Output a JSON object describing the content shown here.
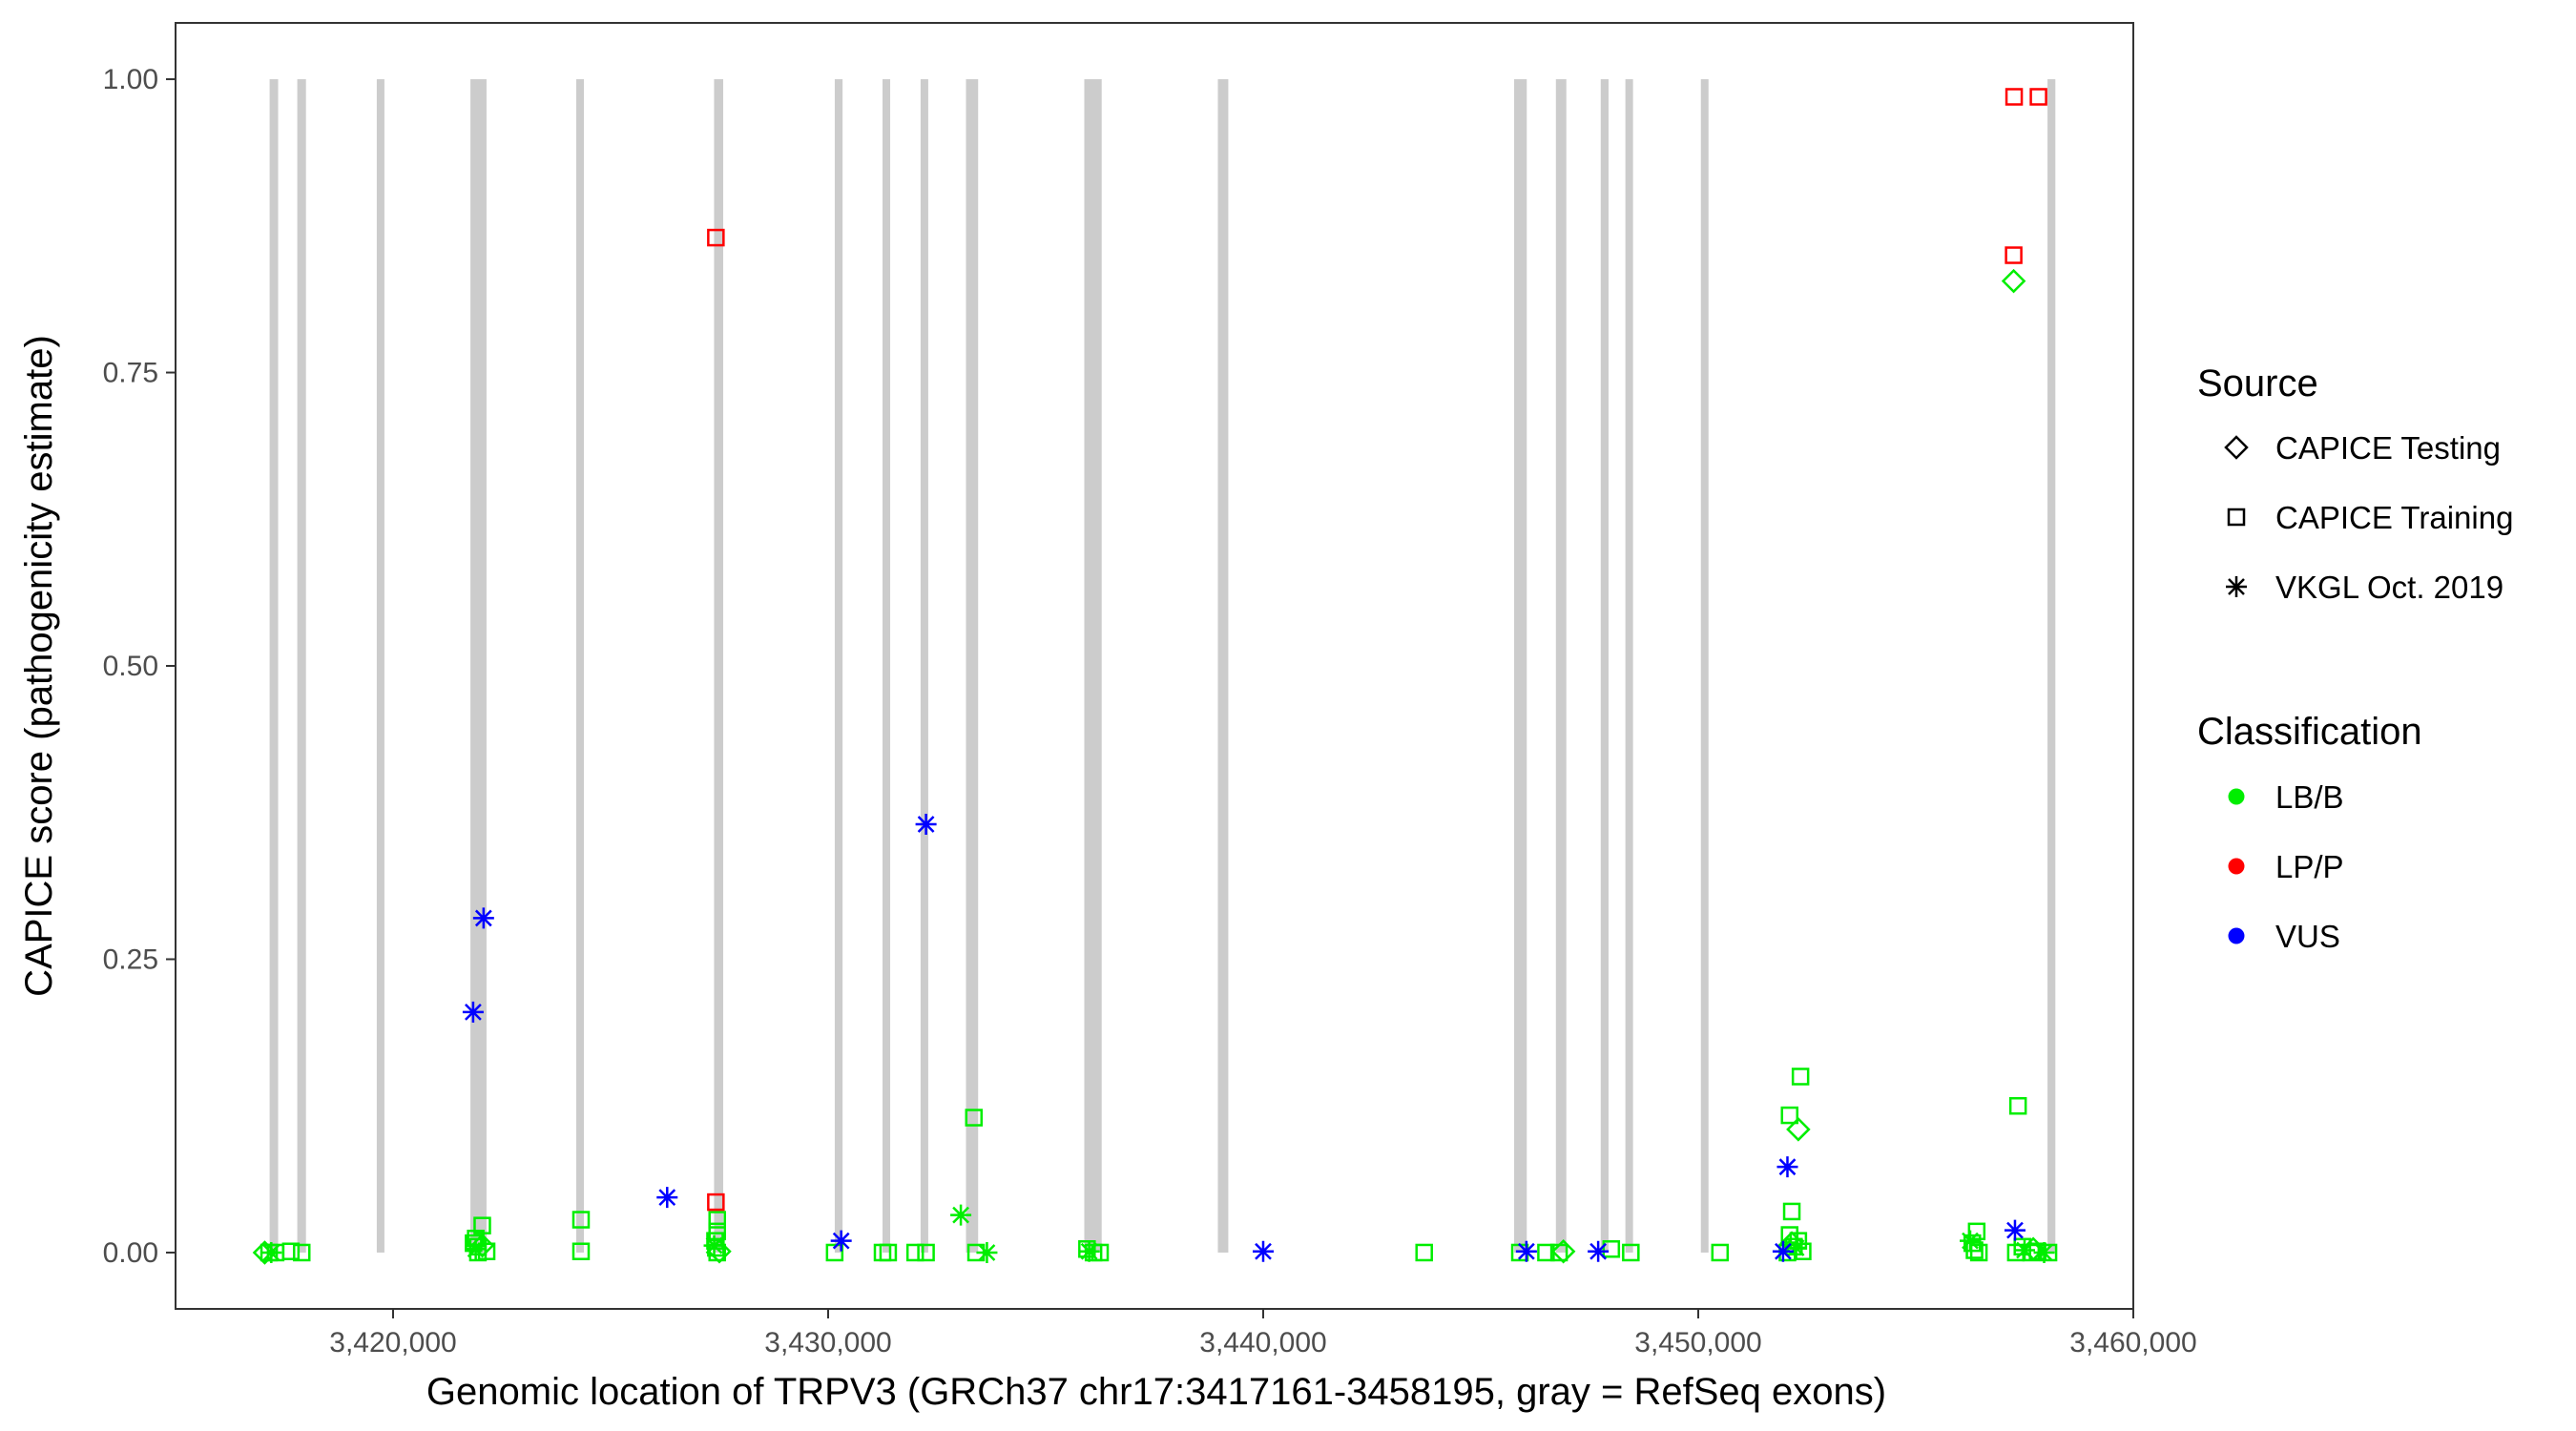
{
  "chart_data": {
    "type": "scatter",
    "title": "",
    "xlabel": "Genomic location of TRPV3 (GRCh37 chr17:3417161-3458195, gray = RefSeq exons)",
    "ylabel": "CAPICE score (pathogenicity estimate)",
    "xlim": [
      3415000,
      3460000
    ],
    "ylim": [
      -0.048,
      1.048
    ],
    "x_ticks": [
      3420000,
      3430000,
      3440000,
      3450000,
      3460000
    ],
    "x_tick_labels": [
      "3,420,000",
      "3,430,000",
      "3,440,000",
      "3,450,000",
      "3,460,000"
    ],
    "y_ticks": [
      0,
      0.25,
      0.5,
      0.75,
      1.0
    ],
    "y_tick_labels": [
      "0.00",
      "0.25",
      "0.50",
      "0.75",
      "1.00"
    ],
    "grid": false,
    "exon_color": "#cccccc",
    "exons": [
      [
        3417162,
        3417358
      ],
      [
        3417798,
        3417998
      ],
      [
        3419628,
        3419798
      ],
      [
        3421778,
        3422148
      ],
      [
        3424232,
        3424365
      ],
      [
        3427378,
        3427588
      ],
      [
        3430152,
        3430332
      ],
      [
        3431258,
        3431418
      ],
      [
        3432128,
        3432298
      ],
      [
        3433168,
        3433448
      ],
      [
        3435888,
        3436288
      ],
      [
        3438958,
        3439198
      ],
      [
        3445768,
        3446058
      ],
      [
        3446728,
        3446968
      ],
      [
        3447758,
        3447938
      ],
      [
        3448328,
        3448498
      ],
      [
        3450078,
        3450218
      ],
      [
        3458028,
        3458208
      ]
    ],
    "legend_position": "right",
    "legends": {
      "source": {
        "title": "Source",
        "entries": [
          {
            "label": "CAPICE Testing",
            "shape": "diamond"
          },
          {
            "label": "CAPICE Training",
            "shape": "square"
          },
          {
            "label": "VKGL Oct. 2019",
            "shape": "asterisk"
          }
        ]
      },
      "classification": {
        "title": "Classification",
        "entries": [
          {
            "label": "LB/B",
            "color": "#00ee00"
          },
          {
            "label": "LP/P",
            "color": "#ff0000"
          },
          {
            "label": "VUS",
            "color": "#0000ff"
          }
        ]
      }
    },
    "series": [
      {
        "classification": "LP/P",
        "color": "#ff0000",
        "points": [
          {
            "x": 3427420,
            "y": 0.865,
            "s": "square"
          },
          {
            "x": 3427420,
            "y": 0.043,
            "s": "square"
          },
          {
            "x": 3457260,
            "y": 0.985,
            "s": "square"
          },
          {
            "x": 3457820,
            "y": 0.985,
            "s": "square"
          },
          {
            "x": 3457250,
            "y": 0.85,
            "s": "square"
          }
        ]
      },
      {
        "classification": "VUS",
        "color": "#0000ff",
        "points": [
          {
            "x": 3421840,
            "y": 0.205,
            "s": "asterisk"
          },
          {
            "x": 3422080,
            "y": 0.285,
            "s": "asterisk"
          },
          {
            "x": 3426300,
            "y": 0.047,
            "s": "asterisk"
          },
          {
            "x": 3430300,
            "y": 0.01,
            "s": "asterisk"
          },
          {
            "x": 3432250,
            "y": 0.365,
            "s": "asterisk"
          },
          {
            "x": 3440000,
            "y": 0.001,
            "s": "asterisk"
          },
          {
            "x": 3446050,
            "y": 0.001,
            "s": "asterisk"
          },
          {
            "x": 3447700,
            "y": 0.001,
            "s": "asterisk"
          },
          {
            "x": 3452050,
            "y": 0.073,
            "s": "asterisk"
          },
          {
            "x": 3451950,
            "y": 0.001,
            "s": "asterisk"
          },
          {
            "x": 3457280,
            "y": 0.019,
            "s": "asterisk"
          }
        ]
      },
      {
        "classification": "LB/B",
        "color": "#00ee00",
        "points": [
          {
            "x": 3417150,
            "y": 0.0,
            "s": "square"
          },
          {
            "x": 3417300,
            "y": 0.0,
            "s": "square"
          },
          {
            "x": 3417650,
            "y": 0.001,
            "s": "square"
          },
          {
            "x": 3417900,
            "y": 0.0,
            "s": "square"
          },
          {
            "x": 3417200,
            "y": 0.0,
            "s": "asterisk"
          },
          {
            "x": 3417050,
            "y": 0.0,
            "s": "diamond"
          },
          {
            "x": 3421950,
            "y": 0.0,
            "s": "square"
          },
          {
            "x": 3421950,
            "y": 0.005,
            "s": "square"
          },
          {
            "x": 3421900,
            "y": 0.012,
            "s": "square"
          },
          {
            "x": 3422050,
            "y": 0.023,
            "s": "square"
          },
          {
            "x": 3422150,
            "y": 0.001,
            "s": "square"
          },
          {
            "x": 3421850,
            "y": 0.008,
            "s": "square"
          },
          {
            "x": 3421900,
            "y": 0.003,
            "s": "asterisk"
          },
          {
            "x": 3422050,
            "y": 0.006,
            "s": "diamond"
          },
          {
            "x": 3424320,
            "y": 0.028,
            "s": "square"
          },
          {
            "x": 3424320,
            "y": 0.001,
            "s": "square"
          },
          {
            "x": 3427450,
            "y": 0.0,
            "s": "square"
          },
          {
            "x": 3427420,
            "y": 0.004,
            "s": "square"
          },
          {
            "x": 3427400,
            "y": 0.01,
            "s": "square"
          },
          {
            "x": 3427450,
            "y": 0.018,
            "s": "square"
          },
          {
            "x": 3427450,
            "y": 0.028,
            "s": "square"
          },
          {
            "x": 3427380,
            "y": 0.006,
            "s": "asterisk"
          },
          {
            "x": 3427500,
            "y": 0.001,
            "s": "diamond"
          },
          {
            "x": 3430150,
            "y": 0.0,
            "s": "square"
          },
          {
            "x": 3431250,
            "y": 0.0,
            "s": "square"
          },
          {
            "x": 3431380,
            "y": 0.0,
            "s": "square"
          },
          {
            "x": 3432000,
            "y": 0.0,
            "s": "square"
          },
          {
            "x": 3432250,
            "y": 0.0,
            "s": "square"
          },
          {
            "x": 3433050,
            "y": 0.032,
            "s": "asterisk"
          },
          {
            "x": 3433350,
            "y": 0.115,
            "s": "square"
          },
          {
            "x": 3433400,
            "y": 0.0,
            "s": "square"
          },
          {
            "x": 3433650,
            "y": 0.0,
            "s": "asterisk"
          },
          {
            "x": 3435950,
            "y": 0.003,
            "s": "square"
          },
          {
            "x": 3436100,
            "y": 0.0,
            "s": "square"
          },
          {
            "x": 3436250,
            "y": 0.0,
            "s": "square"
          },
          {
            "x": 3436000,
            "y": 0.001,
            "s": "asterisk"
          },
          {
            "x": 3443700,
            "y": 0.0,
            "s": "square"
          },
          {
            "x": 3445900,
            "y": 0.0,
            "s": "square"
          },
          {
            "x": 3446500,
            "y": 0.0,
            "s": "square"
          },
          {
            "x": 3446800,
            "y": 0.0,
            "s": "square"
          },
          {
            "x": 3446900,
            "y": 0.001,
            "s": "diamond"
          },
          {
            "x": 3448000,
            "y": 0.003,
            "s": "square"
          },
          {
            "x": 3448450,
            "y": 0.0,
            "s": "square"
          },
          {
            "x": 3450500,
            "y": 0.0,
            "s": "square"
          },
          {
            "x": 3452100,
            "y": 0.117,
            "s": "square"
          },
          {
            "x": 3452350,
            "y": 0.15,
            "s": "square"
          },
          {
            "x": 3452300,
            "y": 0.105,
            "s": "diamond"
          },
          {
            "x": 3452150,
            "y": 0.035,
            "s": "square"
          },
          {
            "x": 3452100,
            "y": 0.015,
            "s": "square"
          },
          {
            "x": 3452300,
            "y": 0.01,
            "s": "square"
          },
          {
            "x": 3452200,
            "y": 0.005,
            "s": "square"
          },
          {
            "x": 3452400,
            "y": 0.001,
            "s": "square"
          },
          {
            "x": 3452050,
            "y": 0.0,
            "s": "square"
          },
          {
            "x": 3452250,
            "y": 0.004,
            "s": "asterisk"
          },
          {
            "x": 3452150,
            "y": 0.008,
            "s": "diamond"
          },
          {
            "x": 3456400,
            "y": 0.018,
            "s": "square"
          },
          {
            "x": 3456300,
            "y": 0.008,
            "s": "square"
          },
          {
            "x": 3456350,
            "y": 0.002,
            "s": "square"
          },
          {
            "x": 3456450,
            "y": 0.0,
            "s": "square"
          },
          {
            "x": 3456250,
            "y": 0.01,
            "s": "asterisk"
          },
          {
            "x": 3457250,
            "y": 0.828,
            "s": "diamond"
          },
          {
            "x": 3457350,
            "y": 0.125,
            "s": "square"
          },
          {
            "x": 3457300,
            "y": 0.0,
            "s": "square"
          },
          {
            "x": 3457450,
            "y": 0.005,
            "s": "square"
          },
          {
            "x": 3457650,
            "y": 0.0,
            "s": "square"
          },
          {
            "x": 3457800,
            "y": 0.001,
            "s": "square"
          },
          {
            "x": 3458050,
            "y": 0.0,
            "s": "square"
          },
          {
            "x": 3457500,
            "y": 0.002,
            "s": "asterisk"
          },
          {
            "x": 3457950,
            "y": 0.0,
            "s": "asterisk"
          },
          {
            "x": 3457700,
            "y": 0.003,
            "s": "diamond"
          }
        ]
      }
    ]
  }
}
